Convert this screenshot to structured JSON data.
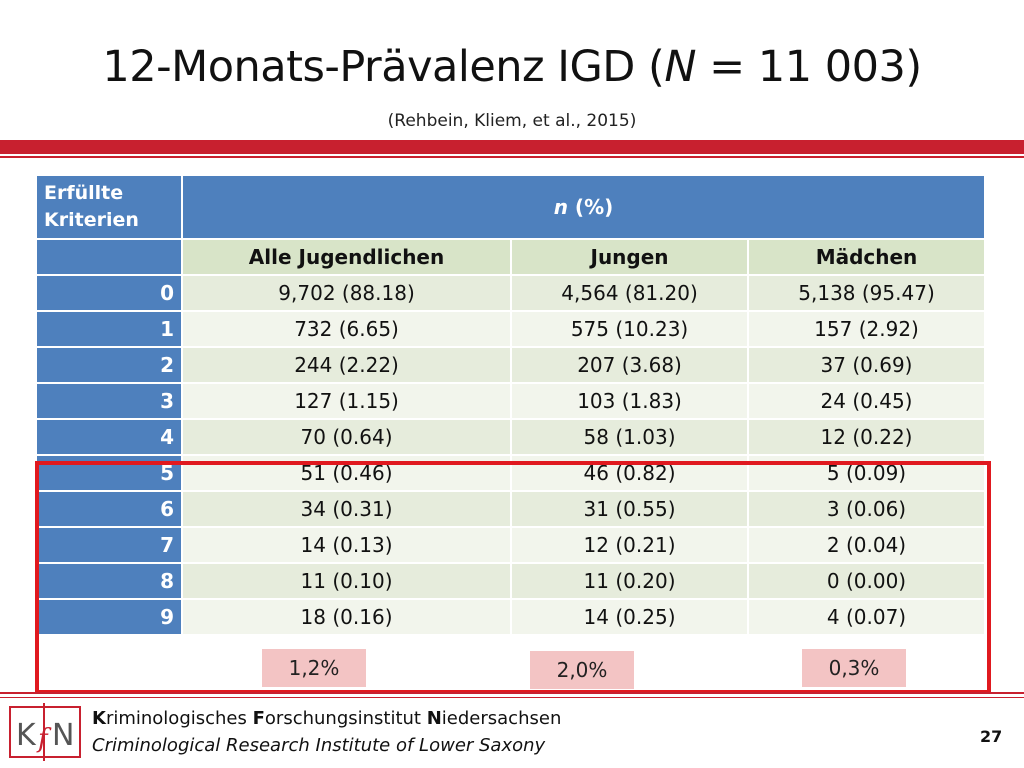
{
  "slide": {
    "title_prefix": "12-Monats-Prävalenz IGD (",
    "title_n": "N",
    "title_suffix": " = 11 003)",
    "subtitle": "(Rehbein, Kliem, et al., 2015)",
    "page_number": "27"
  },
  "table": {
    "criteria_header": "Erfüllte Kriterien",
    "n_header_italic": "n",
    "n_header_rest": " (%)",
    "col_headers": [
      "Alle  Jugendlichen",
      "Jungen",
      "Mädchen"
    ],
    "rows": [
      {
        "label": "0",
        "all": "9,702 (88.18)",
        "boys": "4,564 (81.20)",
        "girls": "5,138 (95.47)"
      },
      {
        "label": "1",
        "all": "732 (6.65)",
        "boys": "575 (10.23)",
        "girls": "157 (2.92)"
      },
      {
        "label": "2",
        "all": "244 (2.22)",
        "boys": "207 (3.68)",
        "girls": "37 (0.69)"
      },
      {
        "label": "3",
        "all": "127 (1.15)",
        "boys": "103 (1.83)",
        "girls": "24 (0.45)"
      },
      {
        "label": "4",
        "all": "70 (0.64)",
        "boys": "58 (1.03)",
        "girls": "12 (0.22)"
      },
      {
        "label": "5",
        "all": "51 (0.46)",
        "boys": "46 (0.82)",
        "girls": "5 (0.09)"
      },
      {
        "label": "6",
        "all": "34 (0.31)",
        "boys": "31 (0.55)",
        "girls": "3 (0.06)"
      },
      {
        "label": "7",
        "all": "14 (0.13)",
        "boys": "12 (0.21)",
        "girls": "2 (0.04)"
      },
      {
        "label": "8",
        "all": "11 (0.10)",
        "boys": "11 (0.20)",
        "girls": "0 (0.00)"
      },
      {
        "label": "9",
        "all": "18 (0.16)",
        "boys": "14 (0.25)",
        "girls": "4 (0.07)"
      }
    ]
  },
  "summary": {
    "all": "1,2%",
    "boys": "2,0%",
    "girls": "0,3%"
  },
  "footer": {
    "logo_text": "KfN",
    "org_de_parts": [
      "K",
      "riminologisches ",
      "F",
      "orschungsinstitut ",
      "N",
      "iedersachsen"
    ],
    "org_en": "Criminological Research Institute of Lower Saxony"
  },
  "colors": {
    "accent_red": "#c8202f",
    "header_blue": "#4e80bd",
    "highlight_red": "#e0191f"
  }
}
